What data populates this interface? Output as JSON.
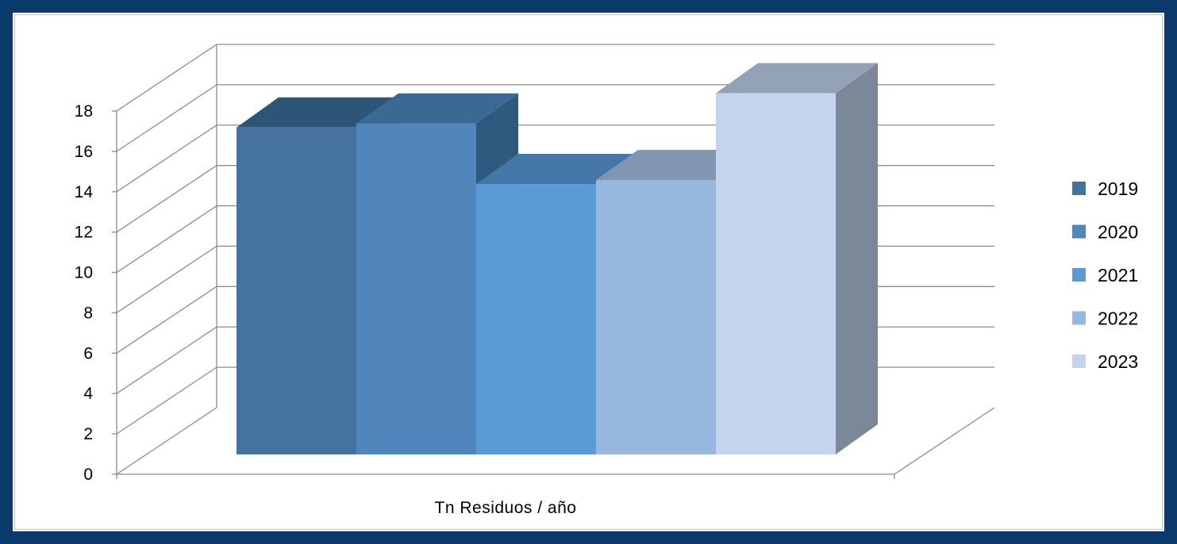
{
  "chart_data": {
    "type": "bar",
    "style": "3d-clustered",
    "categories": [
      "Tn Residuos / año"
    ],
    "series": [
      {
        "name": "2019",
        "values": [
          16.2
        ],
        "color": "#4473a0",
        "top_color": "#2d5578",
        "side_color": "#2d5578"
      },
      {
        "name": "2020",
        "values": [
          16.4
        ],
        "color": "#4f87bd",
        "top_color": "#3a6994",
        "side_color": "#2e5a7f"
      },
      {
        "name": "2021",
        "values": [
          13.4
        ],
        "color": "#5b9bd5",
        "top_color": "#4477a8",
        "side_color": "#3d6a96"
      },
      {
        "name": "2022",
        "values": [
          13.6
        ],
        "color": "#97b7e0",
        "top_color": "#7f97b0",
        "side_color": "#7a8aa0"
      },
      {
        "name": "2023",
        "values": [
          17.9
        ],
        "color": "#c3d4ec",
        "top_color": "#93a3b5",
        "side_color": "#7b8899"
      }
    ],
    "y_ticks": [
      "0",
      "2",
      "4",
      "6",
      "8",
      "10",
      "12",
      "14",
      "16",
      "18"
    ],
    "ylim": [
      0,
      18
    ],
    "grid": true,
    "legend": "right",
    "frame_color": "#0b3a6d",
    "grid_color": "#8c8c8c"
  }
}
